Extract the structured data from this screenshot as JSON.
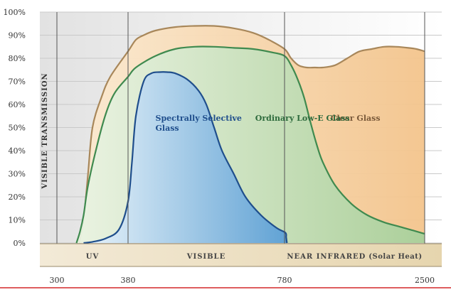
{
  "chart_data": {
    "type": "area",
    "ylabel": "VISIBLE TRANSMISSION",
    "xlabel": "",
    "ylim": [
      0,
      100
    ],
    "y_ticks": [
      "0%",
      "10%",
      "20%",
      "30%",
      "40%",
      "50%",
      "60%",
      "70%",
      "80%",
      "90%",
      "100%"
    ],
    "x_ticks": [
      "300",
      "380",
      "780",
      "2500"
    ],
    "grid": true,
    "regions": [
      {
        "name": "UV",
        "extra": ""
      },
      {
        "name": "VISIBLE",
        "extra": ""
      },
      {
        "name": "NEAR INFRARED",
        "extra": "(Solar Heat)"
      }
    ],
    "series": [
      {
        "name": "Clear Glass",
        "fill": "#f6d3a6",
        "stroke": "#a8875a",
        "label_color": "#7a5a3a",
        "x": [
          325,
          330,
          335,
          340,
          350,
          360,
          380,
          400,
          420,
          450,
          500,
          550,
          600,
          650,
          700,
          740,
          780,
          860,
          950,
          1050,
          1150,
          1250,
          1400,
          1550,
          1700,
          1850,
          2000,
          2150,
          2300,
          2400,
          2500
        ],
        "values": [
          0,
          10,
          30,
          50,
          63,
          72,
          83,
          88,
          90,
          92,
          93.5,
          94,
          94,
          93,
          91,
          88,
          84,
          80,
          77,
          76,
          76,
          76,
          77,
          80,
          83,
          84,
          85,
          85,
          84.5,
          84,
          83
        ]
      },
      {
        "name": "Ordinary Low-E Glass",
        "fill": "#c9e1c0",
        "stroke": "#3f8a4f",
        "label_color": "#2e6b3d",
        "x": [
          322,
          326,
          330,
          335,
          345,
          355,
          365,
          380,
          400,
          450,
          500,
          550,
          600,
          650,
          700,
          750,
          780,
          860,
          940,
          1020,
          1100,
          1180,
          1250,
          1400,
          1600,
          1800,
          2000,
          2200,
          2350,
          2450,
          2500
        ],
        "values": [
          0,
          5,
          12,
          25,
          42,
          56,
          65,
          72,
          76,
          81,
          84,
          85,
          85,
          84.5,
          84,
          82.5,
          81,
          77,
          71,
          63,
          52,
          42,
          35,
          25,
          17,
          12,
          9,
          7,
          5.5,
          4.5,
          4
        ]
      },
      {
        "name": "Spectrally Selective Glass",
        "fill": "#bcd9ee",
        "stroke": "#1f4e8c",
        "label_color": "#1f4e8c",
        "x": [
          330,
          340,
          355,
          370,
          380,
          390,
          400,
          420,
          440,
          460,
          480,
          500,
          530,
          560,
          580,
          600,
          620,
          650,
          680,
          720,
          760,
          790,
          800,
          805,
          810
        ],
        "values": [
          0,
          0.5,
          2,
          6,
          18,
          35,
          55,
          70,
          73.5,
          74,
          74,
          73.5,
          71,
          66,
          60,
          50,
          40,
          30,
          20,
          12,
          6.5,
          4.5,
          2.5,
          1,
          0
        ]
      }
    ]
  }
}
